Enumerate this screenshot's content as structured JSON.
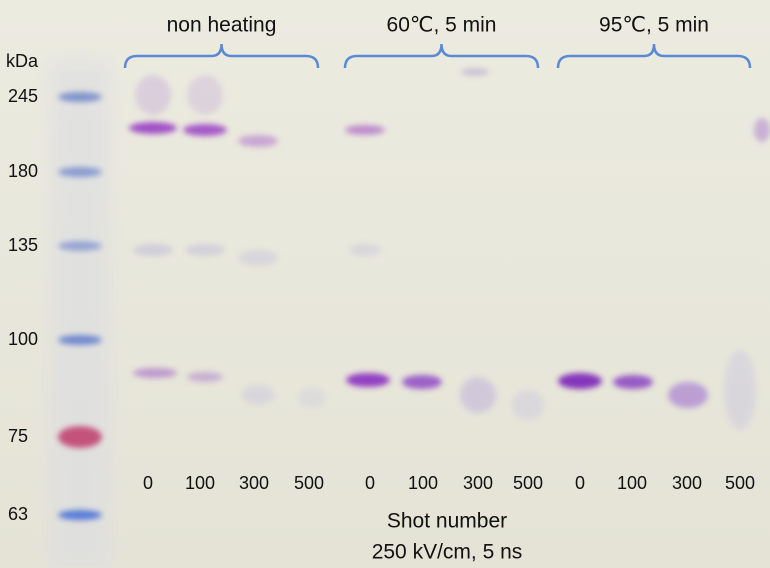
{
  "marker_unit": "kDa",
  "markers": [
    "245",
    "180",
    "135",
    "100",
    "75",
    "63"
  ],
  "groups": [
    {
      "label": "non heating",
      "lanes": [
        "0",
        "100",
        "300",
        "500"
      ]
    },
    {
      "label": "60℃, 5 min",
      "lanes": [
        "0",
        "100",
        "300",
        "500"
      ]
    },
    {
      "label": "95℃, 5 min",
      "lanes": [
        "0",
        "100",
        "300",
        "500"
      ]
    }
  ],
  "x_axis": {
    "title": "Shot number",
    "subtitle": "250 kV/cm, 5 ns"
  }
}
